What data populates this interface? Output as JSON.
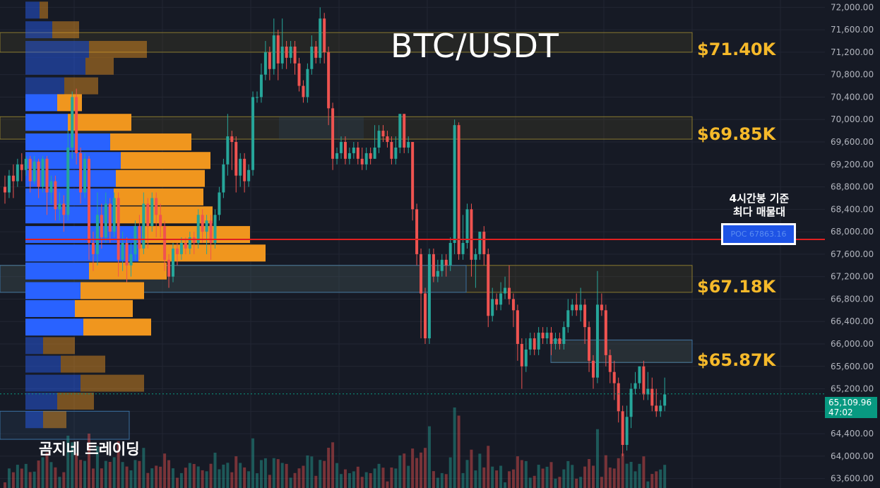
{
  "header": {
    "title": "BTC/USDT"
  },
  "watermark": "곰지네 트레이딩",
  "level_labels": [
    {
      "price": 71400,
      "text": "$71.40K"
    },
    {
      "price": 69850,
      "text": "$69.85K"
    },
    {
      "price": 67180,
      "text": "$67.18K"
    },
    {
      "price": 65870,
      "text": "$65.87K"
    }
  ],
  "poc": {
    "note_line1": "4시간봉 기준",
    "note_line2": "최다 매물대",
    "label": "POC 67863.16",
    "price": 67863.16
  },
  "last_price": {
    "value": "65,109.96",
    "countdown": "47:02",
    "price": 65109.96
  },
  "colors": {
    "background": "#161a25",
    "up": "#26a69a",
    "down": "#ef5350",
    "volume_up": "#2962ff",
    "volume_down": "#f0961e",
    "poc_line": "#e02020",
    "level_text": "#f5b92a",
    "last_price": "#089981"
  },
  "chart_data": {
    "type": "candlestick",
    "title": "BTC/USDT",
    "y_axis_ticks": [
      "72,000.00",
      "71,600.00",
      "71,200.00",
      "70,800.00",
      "70,400.00",
      "70,000.00",
      "69,600.00",
      "69,200.00",
      "68,800.00",
      "68,400.00",
      "68,000.00",
      "67,600.00",
      "67,200.00",
      "66,800.00",
      "66,400.00",
      "66,000.00",
      "65,600.00",
      "65,200.00",
      "64,800.00",
      "64,400.00",
      "64,000.00",
      "63,600.00"
    ],
    "ylim": [
      63500,
      72150
    ],
    "grid": true,
    "zones": [
      {
        "low": 71200,
        "high": 71550,
        "label": "$71.40K"
      },
      {
        "low": 69650,
        "high": 70050,
        "label": "$69.85K"
      },
      {
        "low": 66920,
        "high": 67400,
        "label": "$67.18K"
      },
      {
        "low": 65670,
        "high": 66070,
        "label": "$65.87K"
      }
    ],
    "volume_profile": [
      {
        "price": 71950,
        "buy": 20,
        "sell": 12
      },
      {
        "price": 71600,
        "buy": 38,
        "sell": 38
      },
      {
        "price": 71250,
        "buy": 90,
        "sell": 82
      },
      {
        "price": 70950,
        "buy": 85,
        "sell": 40
      },
      {
        "price": 70600,
        "buy": 55,
        "sell": 48
      },
      {
        "price": 70300,
        "buy": 45,
        "sell": 35
      },
      {
        "price": 69950,
        "buy": 60,
        "sell": 90
      },
      {
        "price": 69600,
        "buy": 120,
        "sell": 115
      },
      {
        "price": 69270,
        "buy": 135,
        "sell": 127
      },
      {
        "price": 68950,
        "buy": 128,
        "sell": 126
      },
      {
        "price": 68620,
        "buy": 125,
        "sell": 127
      },
      {
        "price": 68300,
        "buy": 125,
        "sell": 140
      },
      {
        "price": 67950,
        "buy": 165,
        "sell": 153
      },
      {
        "price": 67620,
        "buy": 160,
        "sell": 180
      },
      {
        "price": 67300,
        "buy": 90,
        "sell": 110
      },
      {
        "price": 66950,
        "buy": 78,
        "sell": 90
      },
      {
        "price": 66630,
        "buy": 70,
        "sell": 82
      },
      {
        "price": 66300,
        "buy": 82,
        "sell": 96
      },
      {
        "price": 65970,
        "buy": 25,
        "sell": 45
      },
      {
        "price": 65640,
        "buy": 50,
        "sell": 63
      },
      {
        "price": 65300,
        "buy": 78,
        "sell": 90
      },
      {
        "price": 64980,
        "buy": 45,
        "sell": 52
      },
      {
        "price": 64650,
        "buy": 25,
        "sell": 33
      }
    ],
    "candles": [
      [
        68800,
        68700,
        68500,
        69000
      ],
      [
        68700,
        69000,
        68600,
        69100
      ],
      [
        69000,
        68900,
        68600,
        69200
      ],
      [
        68900,
        69200,
        68800,
        69300
      ],
      [
        69200,
        69100,
        68900,
        69400
      ],
      [
        69100,
        69300,
        69000,
        69350
      ],
      [
        69300,
        68900,
        68700,
        69350
      ],
      [
        68900,
        69250,
        68850,
        69350
      ],
      [
        69250,
        68800,
        68600,
        69300
      ],
      [
        68800,
        69300,
        68700,
        69350
      ],
      [
        69300,
        68700,
        68300,
        69350
      ],
      [
        68700,
        68900,
        68500,
        69000
      ],
      [
        68900,
        68400,
        68200,
        69000
      ],
      [
        68400,
        68500,
        68200,
        68700
      ],
      [
        68500,
        68300,
        68000,
        68650
      ],
      [
        68300,
        69500,
        68200,
        69800
      ],
      [
        69500,
        70400,
        69300,
        70500
      ],
      [
        70400,
        69400,
        69200,
        70550
      ],
      [
        69400,
        68700,
        68500,
        69500
      ],
      [
        68700,
        69300,
        68600,
        69400
      ],
      [
        69300,
        67800,
        67500,
        69350
      ],
      [
        67800,
        67600,
        67300,
        68000
      ],
      [
        67600,
        68300,
        67400,
        68700
      ],
      [
        68300,
        67900,
        67700,
        68500
      ],
      [
        67900,
        68500,
        67800,
        68700
      ],
      [
        68500,
        68000,
        67800,
        68600
      ],
      [
        68000,
        68600,
        67900,
        68700
      ],
      [
        68600,
        67500,
        67200,
        68700
      ],
      [
        67500,
        67800,
        67300,
        68000
      ],
      [
        67800,
        67400,
        67100,
        67900
      ],
      [
        67400,
        67600,
        67200,
        67800
      ],
      [
        67600,
        68100,
        67500,
        68200
      ],
      [
        68100,
        67700,
        67500,
        68300
      ],
      [
        67700,
        68500,
        67600,
        68700
      ],
      [
        68500,
        68100,
        67700,
        68600
      ],
      [
        68100,
        68600,
        68000,
        68700
      ],
      [
        68600,
        68300,
        67900,
        68700
      ],
      [
        68300,
        68100,
        67900,
        68500
      ],
      [
        68100,
        67500,
        67300,
        68200
      ],
      [
        67500,
        67200,
        67000,
        67600
      ],
      [
        67200,
        67700,
        67100,
        67800
      ],
      [
        67700,
        67600,
        67400,
        67800
      ],
      [
        67600,
        67800,
        67500,
        67900
      ],
      [
        67800,
        67700,
        67600,
        67900
      ],
      [
        67700,
        67900,
        67600,
        68000
      ],
      [
        67900,
        67800,
        67600,
        68000
      ],
      [
        67800,
        68300,
        67700,
        68400
      ],
      [
        68300,
        68000,
        67800,
        68400
      ],
      [
        68000,
        68200,
        67600,
        68300
      ],
      [
        68200,
        67800,
        67500,
        68300
      ],
      [
        67800,
        68300,
        67700,
        68400
      ],
      [
        68300,
        68700,
        68200,
        68800
      ],
      [
        68700,
        69200,
        68600,
        69300
      ],
      [
        69200,
        69700,
        69000,
        70100
      ],
      [
        69700,
        69600,
        69100,
        69800
      ],
      [
        69600,
        69000,
        68700,
        69700
      ],
      [
        69000,
        69300,
        68800,
        69400
      ],
      [
        69300,
        68900,
        68700,
        69400
      ],
      [
        68900,
        69100,
        68800,
        69200
      ],
      [
        69100,
        70400,
        69000,
        70500
      ],
      [
        70400,
        70400,
        70300,
        70500
      ],
      [
        70400,
        70800,
        70300,
        71000
      ],
      [
        70800,
        71200,
        70700,
        71400
      ],
      [
        71200,
        70900,
        70700,
        71300
      ],
      [
        70900,
        71500,
        70800,
        71800
      ],
      [
        71500,
        71000,
        70700,
        71600
      ],
      [
        71000,
        71300,
        70900,
        71800
      ],
      [
        71300,
        71100,
        70900,
        71400
      ],
      [
        71100,
        71300,
        71000,
        71400
      ],
      [
        71300,
        71000,
        70800,
        71400
      ],
      [
        71000,
        70600,
        70500,
        71100
      ],
      [
        70600,
        70400,
        70300,
        70700
      ],
      [
        70400,
        70900,
        70300,
        71000
      ],
      [
        70900,
        71300,
        70800,
        71500
      ],
      [
        71300,
        71100,
        71000,
        71400
      ],
      [
        71100,
        71800,
        71000,
        72000
      ],
      [
        71800,
        71200,
        71000,
        71900
      ],
      [
        71200,
        70200,
        69900,
        71300
      ],
      [
        70200,
        69300,
        69100,
        70300
      ],
      [
        69300,
        69400,
        69200,
        69500
      ],
      [
        69400,
        69600,
        69300,
        69700
      ],
      [
        69600,
        69300,
        69200,
        69700
      ],
      [
        69300,
        69400,
        69200,
        69500
      ],
      [
        69400,
        69500,
        69300,
        69600
      ],
      [
        69500,
        69300,
        69200,
        69600
      ],
      [
        69300,
        69200,
        69100,
        69500
      ],
      [
        69200,
        69400,
        69100,
        69500
      ],
      [
        69400,
        69300,
        69200,
        69500
      ],
      [
        69300,
        69500,
        69300,
        69900
      ],
      [
        69500,
        69800,
        69400,
        69900
      ],
      [
        69800,
        69700,
        69600,
        69900
      ],
      [
        69700,
        69600,
        69500,
        69800
      ],
      [
        69600,
        69300,
        69200,
        69700
      ],
      [
        69300,
        69500,
        69200,
        69700
      ],
      [
        69500,
        70100,
        69400,
        70100
      ],
      [
        70100,
        69500,
        69400,
        70100
      ],
      [
        69500,
        69600,
        69400,
        69700
      ],
      [
        69600,
        68400,
        68200,
        69600
      ],
      [
        68400,
        67600,
        67400,
        68500
      ],
      [
        67600,
        66900,
        66100,
        67700
      ],
      [
        66900,
        66100,
        66000,
        67000
      ],
      [
        66100,
        67600,
        66000,
        67700
      ],
      [
        67600,
        67200,
        67100,
        67700
      ],
      [
        67200,
        67300,
        67100,
        67500
      ],
      [
        67300,
        67500,
        67200,
        67600
      ],
      [
        67500,
        67400,
        67200,
        67600
      ],
      [
        67400,
        67800,
        67300,
        67900
      ],
      [
        67800,
        69900,
        67600,
        70000
      ],
      [
        69900,
        67600,
        67500,
        69950
      ],
      [
        67600,
        67800,
        67500,
        68300
      ],
      [
        67800,
        68400,
        67700,
        68500
      ],
      [
        68400,
        67500,
        67200,
        68500
      ],
      [
        67500,
        67600,
        67000,
        67700
      ],
      [
        67600,
        68000,
        67500,
        68000
      ],
      [
        68000,
        67600,
        67400,
        68100
      ],
      [
        67600,
        66500,
        66300,
        67700
      ],
      [
        66500,
        66800,
        66400,
        67000
      ],
      [
        66800,
        66700,
        66600,
        66900
      ],
      [
        66700,
        66900,
        66600,
        67100
      ],
      [
        66900,
        67000,
        66800,
        67200
      ],
      [
        67000,
        66800,
        66700,
        67400
      ],
      [
        66800,
        66600,
        66300,
        66900
      ],
      [
        66600,
        66000,
        65700,
        66700
      ],
      [
        66000,
        65600,
        65200,
        66100
      ],
      [
        65600,
        65900,
        65500,
        66100
      ],
      [
        65900,
        66100,
        65800,
        66200
      ],
      [
        66100,
        65900,
        65800,
        66200
      ],
      [
        65900,
        66200,
        65800,
        66300
      ],
      [
        66200,
        66100,
        66000,
        66300
      ],
      [
        66100,
        66200,
        66000,
        66300
      ],
      [
        66200,
        66000,
        65800,
        66300
      ],
      [
        66000,
        66100,
        65900,
        66200
      ],
      [
        66100,
        66000,
        65900,
        66200
      ],
      [
        66000,
        66300,
        65900,
        66400
      ],
      [
        66300,
        66600,
        66200,
        66800
      ],
      [
        66600,
        66700,
        66500,
        66800
      ],
      [
        66700,
        66600,
        66500,
        66900
      ],
      [
        66600,
        66700,
        66400,
        67000
      ],
      [
        66700,
        66300,
        66000,
        66800
      ],
      [
        66300,
        65700,
        65500,
        66400
      ],
      [
        65700,
        65400,
        65200,
        65800
      ],
      [
        65400,
        66700,
        65300,
        67300
      ],
      [
        66700,
        66600,
        66500,
        66900
      ],
      [
        66600,
        65800,
        65600,
        66700
      ],
      [
        65800,
        65500,
        65300,
        65900
      ],
      [
        65500,
        65300,
        65000,
        65700
      ],
      [
        65300,
        64800,
        64600,
        65400
      ],
      [
        64800,
        64200,
        64000,
        64900
      ],
      [
        64200,
        64700,
        64100,
        64900
      ],
      [
        64700,
        65200,
        64500,
        65300
      ],
      [
        65200,
        65300,
        65100,
        65500
      ],
      [
        65300,
        65600,
        65200,
        65600
      ],
      [
        65600,
        65100,
        65000,
        65700
      ],
      [
        65100,
        65200,
        65000,
        65500
      ],
      [
        65200,
        64900,
        64800,
        65400
      ],
      [
        64900,
        64800,
        64700,
        65200
      ],
      [
        64800,
        64900,
        64700,
        65000
      ],
      [
        64900,
        65100,
        64800,
        65400
      ]
    ],
    "last_price": 65109.96
  }
}
